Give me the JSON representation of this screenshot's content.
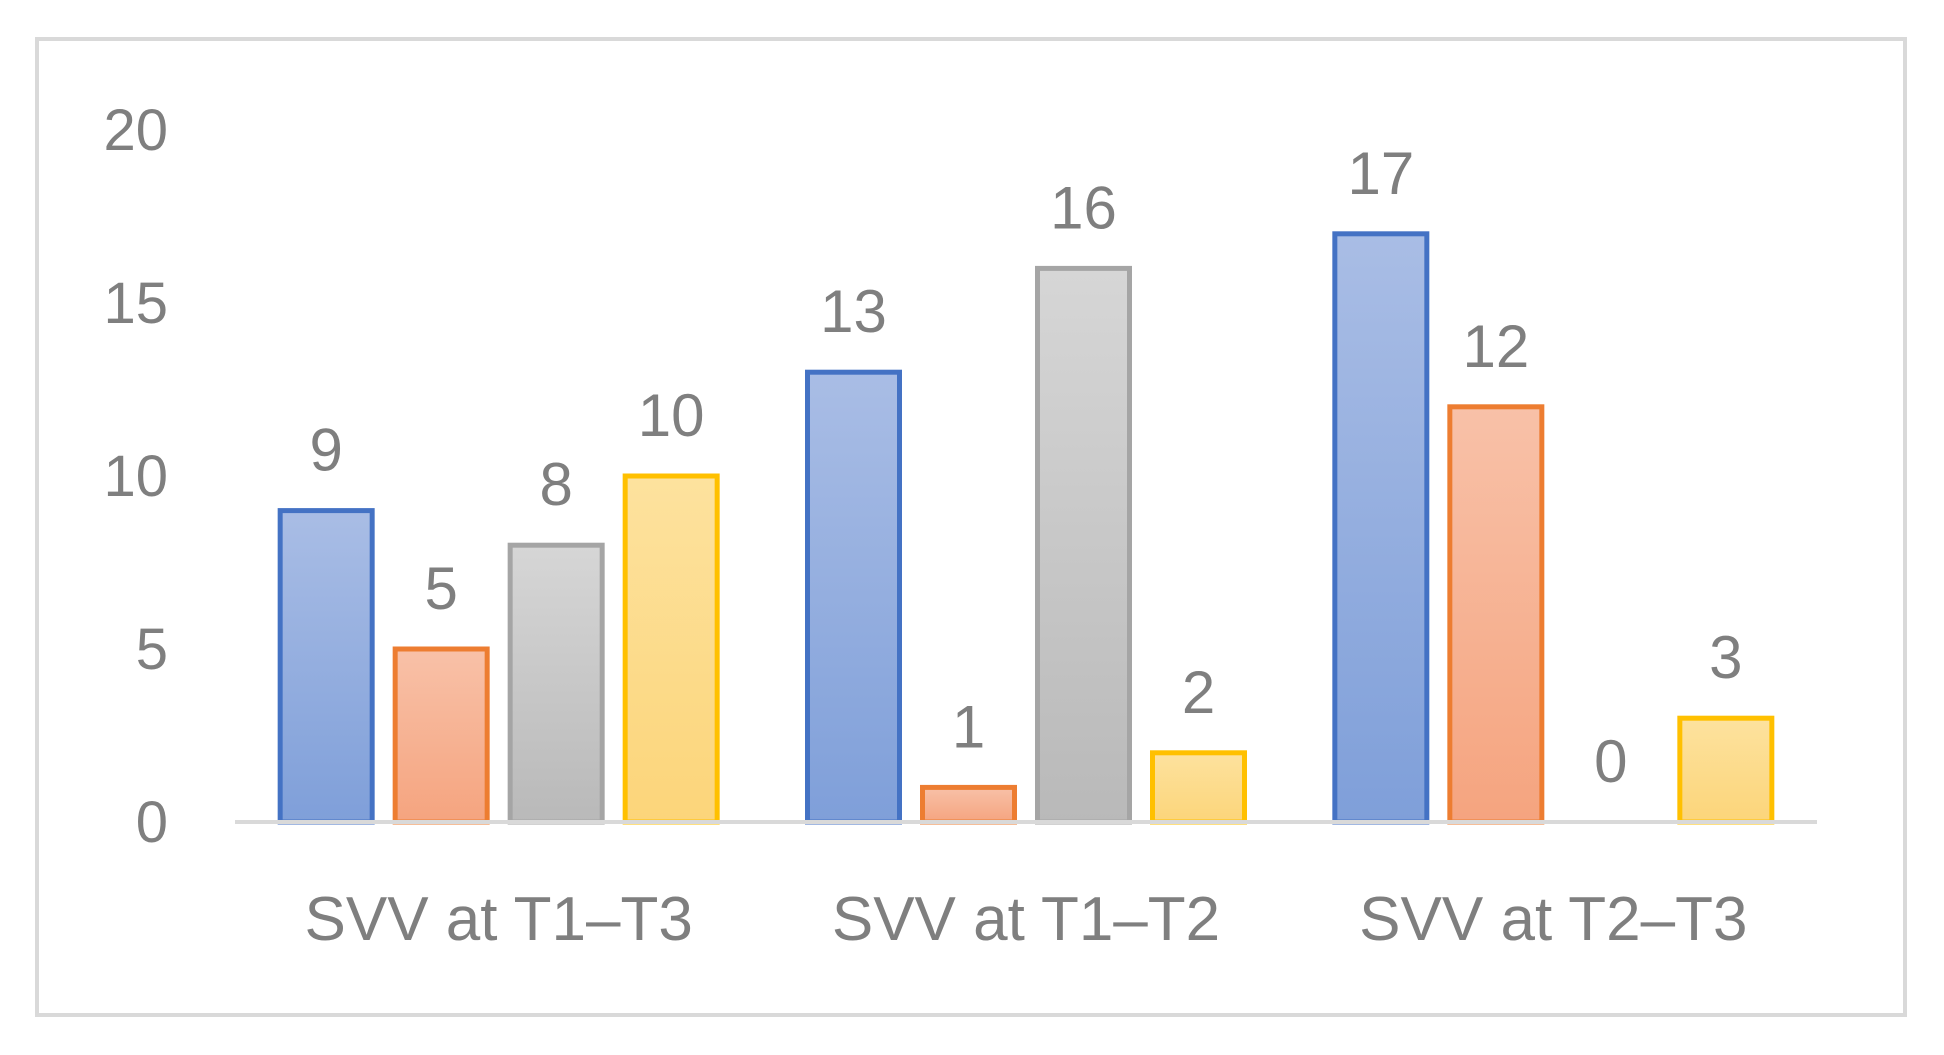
{
  "chart_data": {
    "type": "bar",
    "title": "",
    "xlabel": "",
    "ylabel": "",
    "categories": [
      "SVV at T1–T3",
      "SVV at T1–T2",
      "SVV at T2–T3"
    ],
    "ylim": [
      0,
      20
    ],
    "yticks": [
      0,
      5,
      10,
      15,
      20
    ],
    "grid": false,
    "legend": "none",
    "data_labels": true,
    "series": [
      {
        "values": [
          9,
          13,
          17
        ],
        "color": "#4472c4",
        "fill_top": "#a9bde5",
        "fill_bottom": "#7f9fd9"
      },
      {
        "values": [
          5,
          1,
          12
        ],
        "color": "#ed7d31",
        "fill_top": "#f8c1a8",
        "fill_bottom": "#f5a47f"
      },
      {
        "values": [
          8,
          16,
          0
        ],
        "color": "#a5a5a5",
        "fill_top": "#d6d6d6",
        "fill_bottom": "#b9b9b9"
      },
      {
        "values": [
          10,
          2,
          3
        ],
        "color": "#ffc000",
        "fill_top": "#fde29e",
        "fill_bottom": "#fcd57a"
      }
    ]
  }
}
